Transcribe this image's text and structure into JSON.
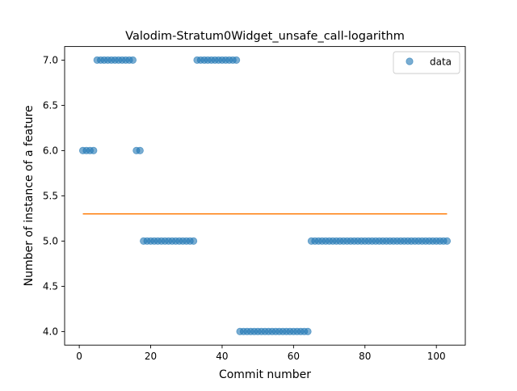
{
  "chart_data": {
    "type": "scatter",
    "title": "Valodim-Stratum0Widget_unsafe_call-logarithm",
    "xlabel": "Commit number",
    "ylabel": "Number of instance of a feature",
    "xlim": [
      -4.1,
      108.1
    ],
    "ylim": [
      3.85,
      7.15
    ],
    "xticks": [
      0,
      20,
      40,
      60,
      80,
      100
    ],
    "yticks": [
      4.0,
      4.5,
      5.0,
      5.5,
      6.0,
      6.5,
      7.0
    ],
    "xtick_labels": [
      "0",
      "20",
      "40",
      "60",
      "80",
      "100"
    ],
    "ytick_labels": [
      "4.0",
      "4.5",
      "5.0",
      "5.5",
      "6.0",
      "6.5",
      "7.0"
    ],
    "grid": false,
    "legend": {
      "placement": "top-right",
      "entries": [
        {
          "label": "data",
          "kind": "marker",
          "color": "#1f77b4"
        }
      ]
    },
    "series": [
      {
        "name": "data",
        "kind": "scatter",
        "color": "#1f77b4",
        "x": [
          1,
          2,
          3,
          4,
          5,
          6,
          7,
          8,
          9,
          10,
          11,
          12,
          13,
          14,
          15,
          16,
          17,
          18,
          19,
          20,
          21,
          22,
          23,
          24,
          25,
          26,
          27,
          28,
          29,
          30,
          31,
          32,
          33,
          34,
          35,
          36,
          37,
          38,
          39,
          40,
          41,
          42,
          43,
          44,
          45,
          46,
          47,
          48,
          49,
          50,
          51,
          52,
          53,
          54,
          55,
          56,
          57,
          58,
          59,
          60,
          61,
          62,
          63,
          64,
          65,
          66,
          67,
          68,
          69,
          70,
          71,
          72,
          73,
          74,
          75,
          76,
          77,
          78,
          79,
          80,
          81,
          82,
          83,
          84,
          85,
          86,
          87,
          88,
          89,
          90,
          91,
          92,
          93,
          94,
          95,
          96,
          97,
          98,
          99,
          100,
          101,
          102,
          103
        ],
        "y": [
          6,
          6,
          6,
          6,
          7,
          7,
          7,
          7,
          7,
          7,
          7,
          7,
          7,
          7,
          7,
          6,
          6,
          5,
          5,
          5,
          5,
          5,
          5,
          5,
          5,
          5,
          5,
          5,
          5,
          5,
          5,
          5,
          7,
          7,
          7,
          7,
          7,
          7,
          7,
          7,
          7,
          7,
          7,
          7,
          4,
          4,
          4,
          4,
          4,
          4,
          4,
          4,
          4,
          4,
          4,
          4,
          4,
          4,
          4,
          4,
          4,
          4,
          4,
          4,
          5,
          5,
          5,
          5,
          5,
          5,
          5,
          5,
          5,
          5,
          5,
          5,
          5,
          5,
          5,
          5,
          5,
          5,
          5,
          5,
          5,
          5,
          5,
          5,
          5,
          5,
          5,
          5,
          5,
          5,
          5,
          5,
          5,
          5,
          5,
          5,
          5,
          5,
          5
        ]
      },
      {
        "kind": "line",
        "color": "#ff7f0e",
        "x": [
          1,
          103
        ],
        "y": [
          5.3,
          5.3
        ]
      }
    ]
  }
}
